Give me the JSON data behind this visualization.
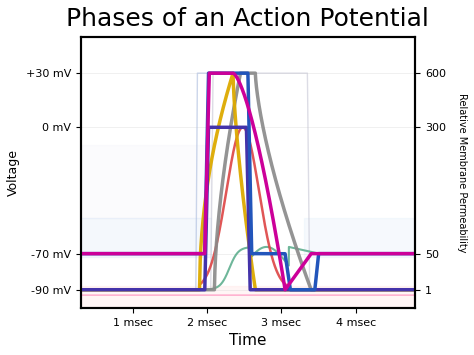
{
  "title": "Phases of an Action Potential",
  "title_fontsize": 18,
  "xlabel": "Time",
  "xlabel_fontsize": 11,
  "ylabel": "Voltage",
  "ylabel_fontsize": 9,
  "ylabel2": "Relative Membrane Permeability",
  "ylabel2_fontsize": 7,
  "yticks_left_vals": [
    -90,
    -70,
    0,
    30
  ],
  "ytick_labels_left": [
    "-90 mV",
    "-70 mV",
    "0 mV",
    "+30 mV"
  ],
  "yticks_right_perms": [
    1,
    50,
    300,
    600
  ],
  "xtick_vals": [
    1,
    2,
    3,
    4
  ],
  "xtick_labels": [
    "1 msec",
    "2 msec",
    "3 msec",
    "4 msec"
  ],
  "xlim": [
    0.3,
    4.8
  ],
  "ylim": [
    -100,
    50
  ],
  "bg_color": "#ffffff",
  "line_blue": "#2255bb",
  "line_yellow": "#ddaa00",
  "line_gray": "#888888",
  "line_purple": "#4433aa",
  "line_red": "#dd4444",
  "line_magenta": "#cc0099",
  "line_teal": "#55aa88",
  "line_pink": "#ffaacc",
  "line_lightblue_step": "#aabbdd",
  "line_lightgray_step": "#aaaacc"
}
